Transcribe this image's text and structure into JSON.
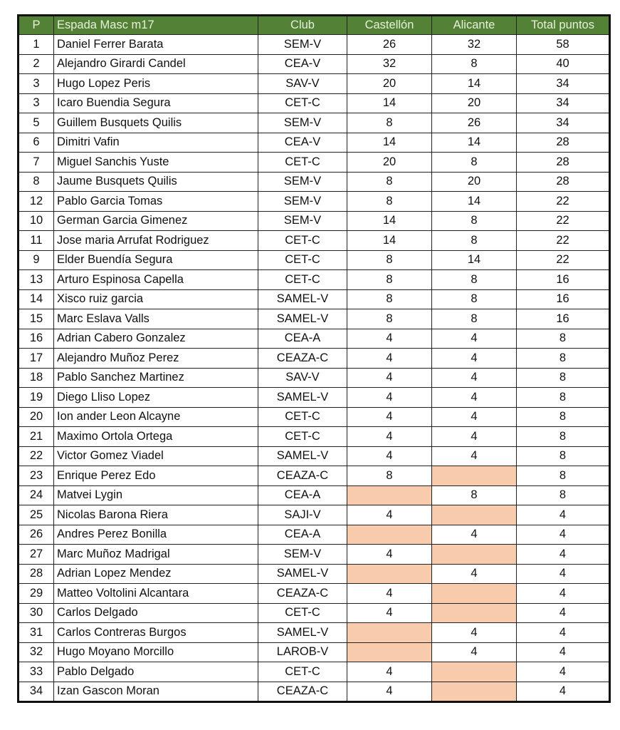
{
  "colors": {
    "header_bg": "#538135",
    "header_text": "#e8f0dc",
    "missing_fill": "#f8cbad"
  },
  "headers": {
    "pos": "P",
    "name": "Espada Masc m17",
    "club": "Club",
    "castellon": "Castellón",
    "alicante": "Alicante",
    "total": "Total puntos"
  },
  "rows": [
    {
      "pos": "1",
      "name": "Daniel Ferrer Barata",
      "club": "SEM-V",
      "castellon": "26",
      "alicante": "32",
      "total": "58"
    },
    {
      "pos": "2",
      "name": "Alejandro Girardi Candel",
      "club": "CEA-V",
      "castellon": "32",
      "alicante": "8",
      "total": "40"
    },
    {
      "pos": "3",
      "name": "Hugo Lopez Peris",
      "club": "SAV-V",
      "castellon": "20",
      "alicante": "14",
      "total": "34"
    },
    {
      "pos": "3",
      "name": "Icaro Buendia Segura",
      "club": "CET-C",
      "castellon": "14",
      "alicante": "20",
      "total": "34"
    },
    {
      "pos": "5",
      "name": "Guillem Busquets Quilis",
      "club": "SEM-V",
      "castellon": "8",
      "alicante": "26",
      "total": "34"
    },
    {
      "pos": "6",
      "name": "Dimitri Vafin",
      "club": "CEA-V",
      "castellon": "14",
      "alicante": "14",
      "total": "28"
    },
    {
      "pos": "7",
      "name": "Miguel Sanchis Yuste",
      "club": "CET-C",
      "castellon": "20",
      "alicante": "8",
      "total": "28"
    },
    {
      "pos": "8",
      "name": "Jaume Busquets Quilis",
      "club": "SEM-V",
      "castellon": "8",
      "alicante": "20",
      "total": "28"
    },
    {
      "pos": "12",
      "name": "Pablo Garcia Tomas",
      "club": "SEM-V",
      "castellon": "8",
      "alicante": "14",
      "total": "22"
    },
    {
      "pos": "10",
      "name": "German Garcia Gimenez",
      "club": "SEM-V",
      "castellon": "14",
      "alicante": "8",
      "total": "22"
    },
    {
      "pos": "11",
      "name": "Jose maria Arrufat Rodriguez",
      "club": "CET-C",
      "castellon": "14",
      "alicante": "8",
      "total": "22"
    },
    {
      "pos": "9",
      "name": "Elder Buendía Segura",
      "club": "CET-C",
      "castellon": "8",
      "alicante": "14",
      "total": "22"
    },
    {
      "pos": "13",
      "name": "Arturo Espinosa Capella",
      "club": "CET-C",
      "castellon": "8",
      "alicante": "8",
      "total": "16"
    },
    {
      "pos": "14",
      "name": "Xisco ruiz garcia",
      "club": "SAMEL-V",
      "castellon": "8",
      "alicante": "8",
      "total": "16"
    },
    {
      "pos": "15",
      "name": "Marc Eslava Valls",
      "club": "SAMEL-V",
      "castellon": "8",
      "alicante": "8",
      "total": "16"
    },
    {
      "pos": "16",
      "name": "Adrian Cabero Gonzalez",
      "club": "CEA-A",
      "castellon": "4",
      "alicante": "4",
      "total": "8"
    },
    {
      "pos": "17",
      "name": "Alejandro Muñoz Perez",
      "club": "CEAZA-C",
      "castellon": "4",
      "alicante": "4",
      "total": "8"
    },
    {
      "pos": "18",
      "name": "Pablo Sanchez Martinez",
      "club": "SAV-V",
      "castellon": "4",
      "alicante": "4",
      "total": "8"
    },
    {
      "pos": "19",
      "name": "Diego Lliso Lopez",
      "club": "SAMEL-V",
      "castellon": "4",
      "alicante": "4",
      "total": "8"
    },
    {
      "pos": "20",
      "name": "Ion ander Leon Alcayne",
      "club": "CET-C",
      "castellon": "4",
      "alicante": "4",
      "total": "8"
    },
    {
      "pos": "21",
      "name": "Maximo Ortola Ortega",
      "club": "CET-C",
      "castellon": "4",
      "alicante": "4",
      "total": "8"
    },
    {
      "pos": "22",
      "name": "Victor Gomez Viadel",
      "club": "SAMEL-V",
      "castellon": "4",
      "alicante": "4",
      "total": "8"
    },
    {
      "pos": "23",
      "name": "Enrique Perez Edo",
      "club": "CEAZA-C",
      "castellon": "8",
      "alicante": null,
      "total": "8"
    },
    {
      "pos": "24",
      "name": "Matvei Lygin",
      "club": "CEA-A",
      "castellon": null,
      "alicante": "8",
      "total": "8"
    },
    {
      "pos": "25",
      "name": "Nicolas Barona Riera",
      "club": "SAJI-V",
      "castellon": "4",
      "alicante": null,
      "total": "4"
    },
    {
      "pos": "26",
      "name": "Andres Perez Bonilla",
      "club": "CEA-A",
      "castellon": null,
      "alicante": "4",
      "total": "4"
    },
    {
      "pos": "27",
      "name": "Marc Muñoz Madrigal",
      "club": "SEM-V",
      "castellon": "4",
      "alicante": null,
      "total": "4"
    },
    {
      "pos": "28",
      "name": "Adrian Lopez Mendez",
      "club": "SAMEL-V",
      "castellon": null,
      "alicante": "4",
      "total": "4"
    },
    {
      "pos": "29",
      "name": "Matteo Voltolini Alcantara",
      "club": "CEAZA-C",
      "castellon": "4",
      "alicante": null,
      "total": "4"
    },
    {
      "pos": "30",
      "name": "Carlos Delgado",
      "club": "CET-C",
      "castellon": "4",
      "alicante": null,
      "total": "4"
    },
    {
      "pos": "31",
      "name": "Carlos Contreras Burgos",
      "club": "SAMEL-V",
      "castellon": null,
      "alicante": "4",
      "total": "4"
    },
    {
      "pos": "32",
      "name": "Hugo Moyano  Morcillo",
      "club": "LAROB-V",
      "castellon": null,
      "alicante": "4",
      "total": "4"
    },
    {
      "pos": "33",
      "name": "Pablo Delgado",
      "club": "CET-C",
      "castellon": "4",
      "alicante": null,
      "total": "4"
    },
    {
      "pos": "34",
      "name": "Izan Gascon Moran",
      "club": "CEAZA-C",
      "castellon": "4",
      "alicante": null,
      "total": "4"
    }
  ]
}
